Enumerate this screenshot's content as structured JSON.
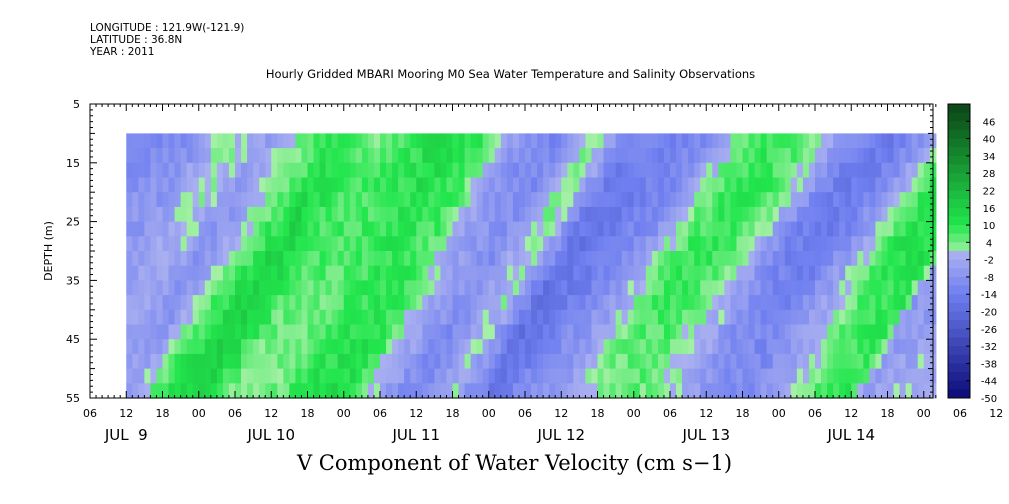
{
  "header": {
    "longitude": "LONGITUDE : 121.9W(-121.9)",
    "latitude": "LATITUDE : 36.8N",
    "year": "YEAR : 2011"
  },
  "chart_data": {
    "type": "heatmap",
    "title": "Hourly Gridded MBARI Mooring M0 Sea Water Temperature and Salinity Observations",
    "xlabel": "V Component of Water Velocity (cm s−1)",
    "ylabel": "DEPTH (m)",
    "ylim": [
      55,
      5
    ],
    "yticks": [
      5,
      15,
      25,
      35,
      45,
      55
    ],
    "x_hour_ticks": [
      "06",
      "12",
      "18",
      "00",
      "06",
      "12",
      "18",
      "00",
      "06",
      "12",
      "18",
      "00",
      "06",
      "12",
      "18",
      "00",
      "06",
      "12",
      "18",
      "00",
      "06",
      "12",
      "18",
      "00",
      "06",
      "12",
      "18",
      "00"
    ],
    "x_day_labels": [
      "JUL  9",
      "JUL 10",
      "JUL 11",
      "JUL 12",
      "JUL 13",
      "JUL 14"
    ],
    "data_start": "JUL 9 12:00",
    "data_end": "JUL 15 02:00",
    "data_depth_range": [
      10,
      55
    ],
    "colorbar": {
      "labels": [
        "46",
        "40",
        "34",
        "28",
        "22",
        "16",
        "10",
        "4",
        "-2",
        "-8",
        "-14",
        "-20",
        "-26",
        "-32",
        "-38",
        "-44",
        "-50"
      ],
      "min": -50,
      "max": 52,
      "step": 3
    },
    "velocity_profile_by_hour": [
      {
        "t": 6,
        "v": -8
      },
      {
        "t": 12,
        "v": -10
      },
      {
        "t": 18,
        "v": 0
      },
      {
        "t": 24,
        "v": -6
      },
      {
        "t": 30,
        "v": 6
      },
      {
        "t": 36,
        "v": 14
      },
      {
        "t": 42,
        "v": 4
      },
      {
        "t": 48,
        "v": 6
      },
      {
        "t": 54,
        "v": 12
      },
      {
        "t": 60,
        "v": 10
      },
      {
        "t": 66,
        "v": -6
      },
      {
        "t": 72,
        "v": -12
      },
      {
        "t": 78,
        "v": 2
      },
      {
        "t": 84,
        "v": -16
      },
      {
        "t": 90,
        "v": -12
      },
      {
        "t": 96,
        "v": -8
      },
      {
        "t": 102,
        "v": 4
      },
      {
        "t": 108,
        "v": 8
      },
      {
        "t": 114,
        "v": 2
      },
      {
        "t": 120,
        "v": -10
      },
      {
        "t": 126,
        "v": -14
      },
      {
        "t": 132,
        "v": -6
      },
      {
        "t": 138,
        "v": 8
      },
      {
        "t": 144,
        "v": 12
      },
      {
        "t": 146,
        "v": -4
      }
    ],
    "colors": {
      "positive_dark": "#0d4a1a",
      "positive_bright": "#22e64d",
      "positive_light": "#a6f0a6",
      "negative_light": "#aab0f0",
      "negative_mid": "#6f7ff0",
      "negative_dark": "#0a0a78"
    }
  }
}
